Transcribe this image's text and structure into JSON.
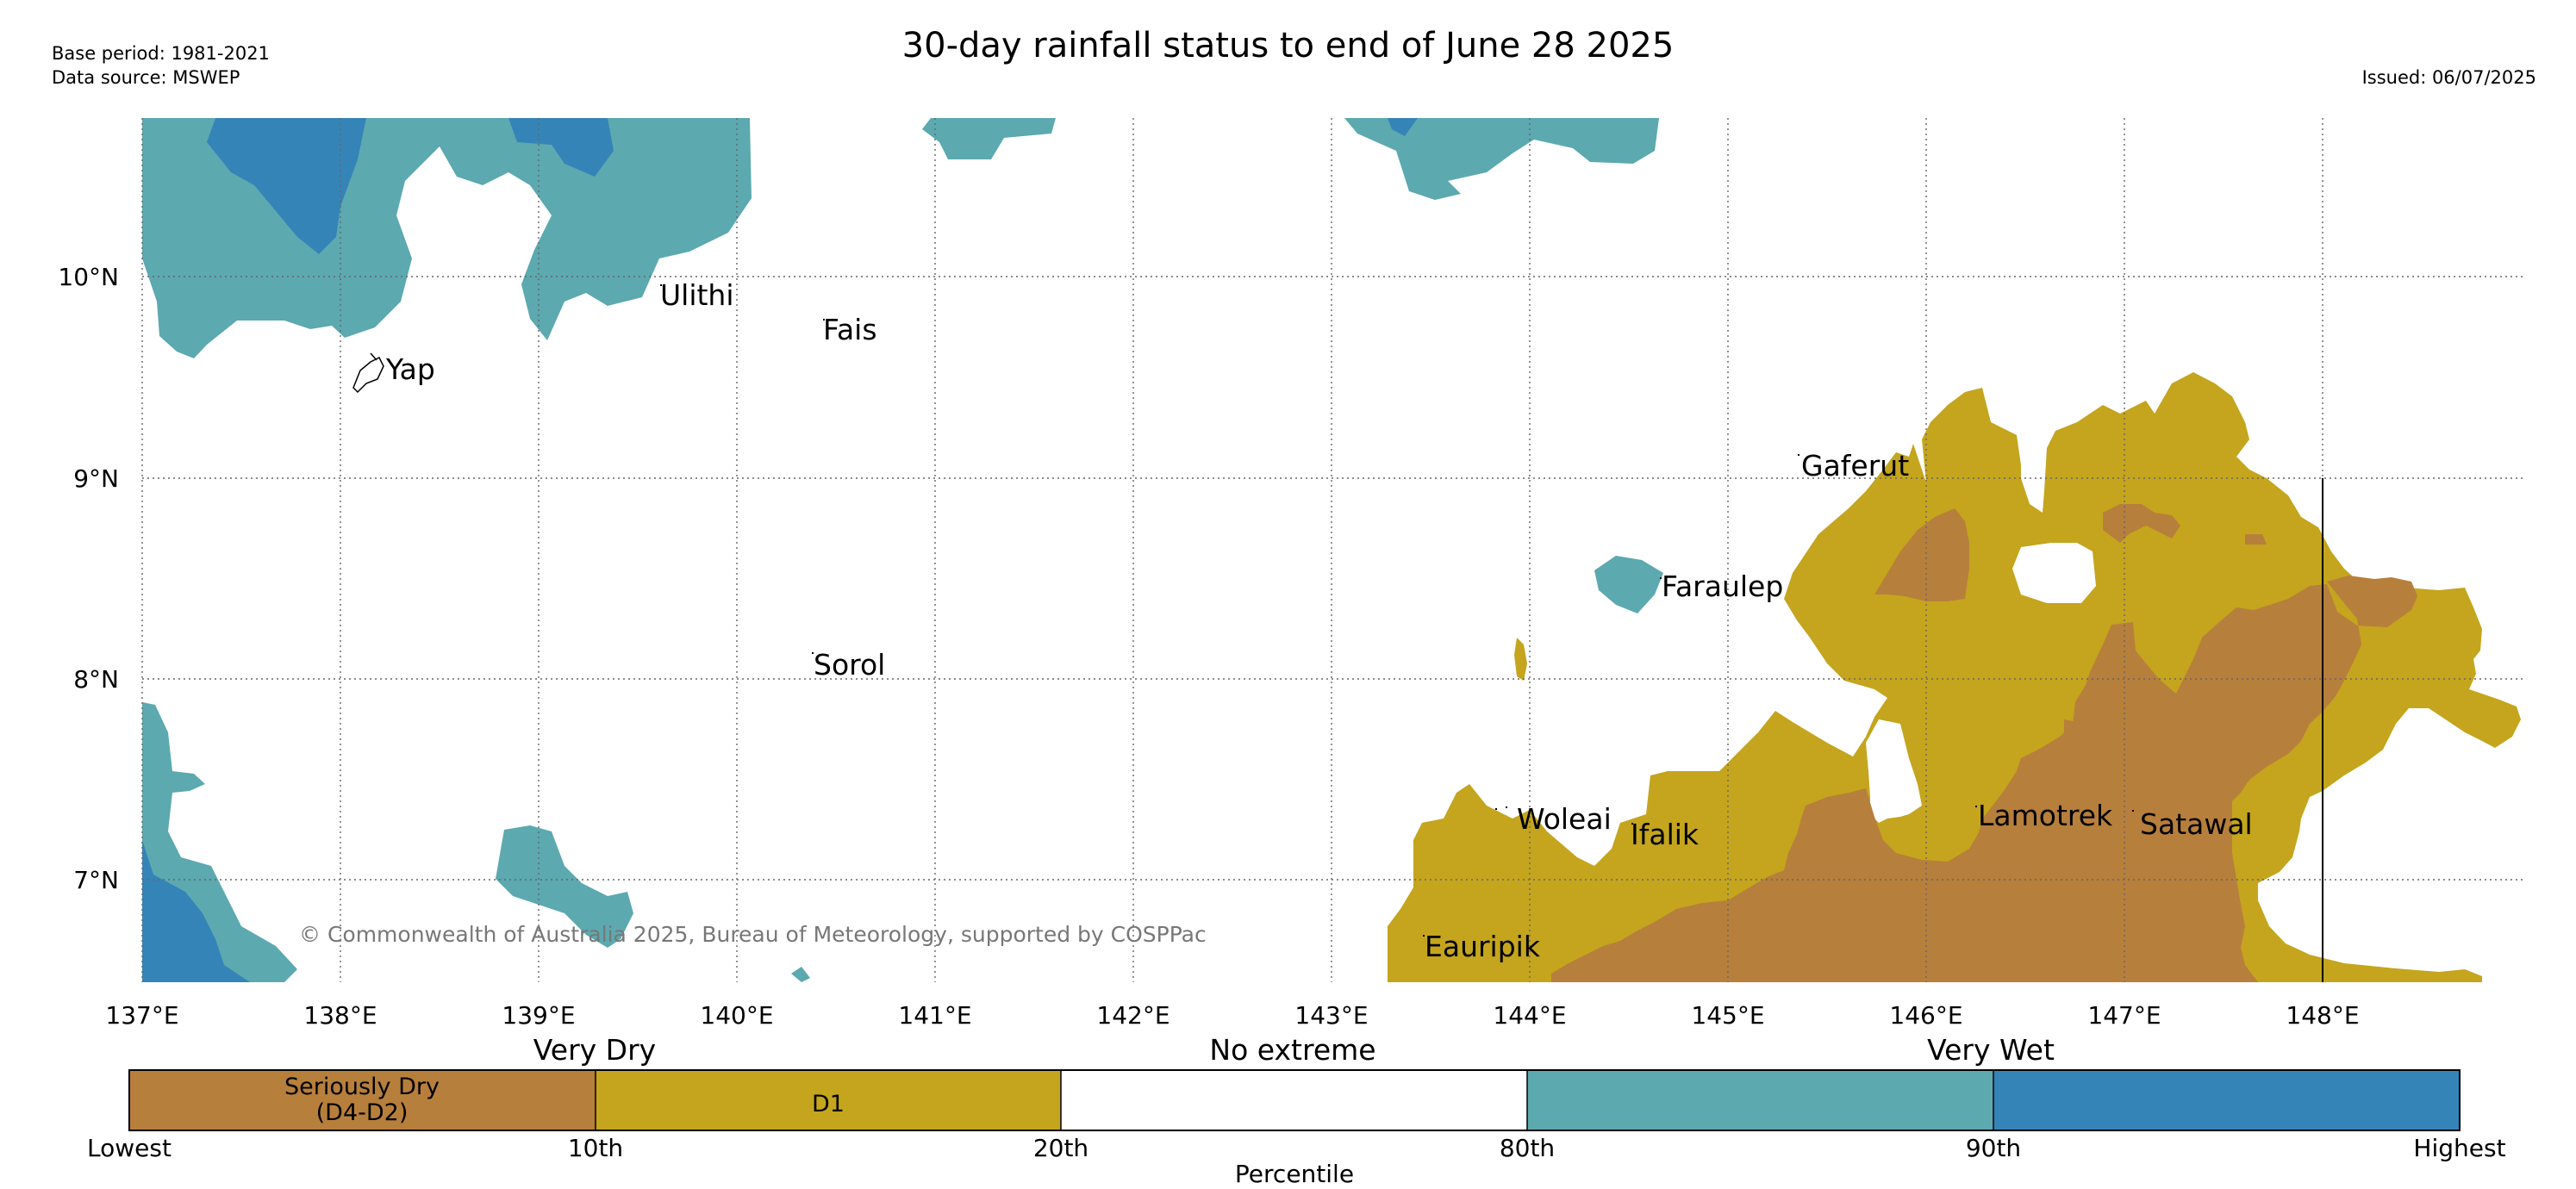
{
  "header": {
    "title": "30-day rainfall status to end of June 28 2025",
    "base_period": "Base period: 1981-2021",
    "data_source": "Data source: MSWEP",
    "issued": "Issued: 06/07/2025"
  },
  "map": {
    "lon_labels": [
      "137°E",
      "138°E",
      "139°E",
      "140°E",
      "141°E",
      "142°E",
      "143°E",
      "144°E",
      "145°E",
      "146°E",
      "147°E",
      "148°E"
    ],
    "lat_labels": [
      "10°N",
      "9°N",
      "8°N",
      "7°N"
    ],
    "places": [
      {
        "name": "Yap"
      },
      {
        "name": "Ulithi"
      },
      {
        "name": "Fais"
      },
      {
        "name": "Gaferut"
      },
      {
        "name": "Faraulep"
      },
      {
        "name": "Sorol"
      },
      {
        "name": "Woleai"
      },
      {
        "name": "Ifalik"
      },
      {
        "name": "Lamotrek"
      },
      {
        "name": "Satawal"
      },
      {
        "name": "Eauripik"
      }
    ],
    "copyright": "© Commonwealth of Australia 2025, Bureau of Meteorology, supported by COSPPac"
  },
  "legend": {
    "group_labels": [
      "Very Dry",
      "No extreme",
      "Very Wet"
    ],
    "categories": [
      {
        "label": "Seriously Dry (D4-D2)",
        "label_line1": "Seriously Dry",
        "label_line2": "(D4-D2)",
        "color": "#b77f3c"
      },
      {
        "label": "D1",
        "color": "#c4a51d"
      },
      {
        "label": "",
        "color": "#ffffff"
      },
      {
        "label": "",
        "color": "#5ca9b0"
      },
      {
        "label": "",
        "color": "#3584b8"
      }
    ],
    "tick_labels": [
      "Lowest",
      "10th",
      "20th",
      "80th",
      "90th",
      "Highest"
    ],
    "axis_label": "Percentile"
  }
}
